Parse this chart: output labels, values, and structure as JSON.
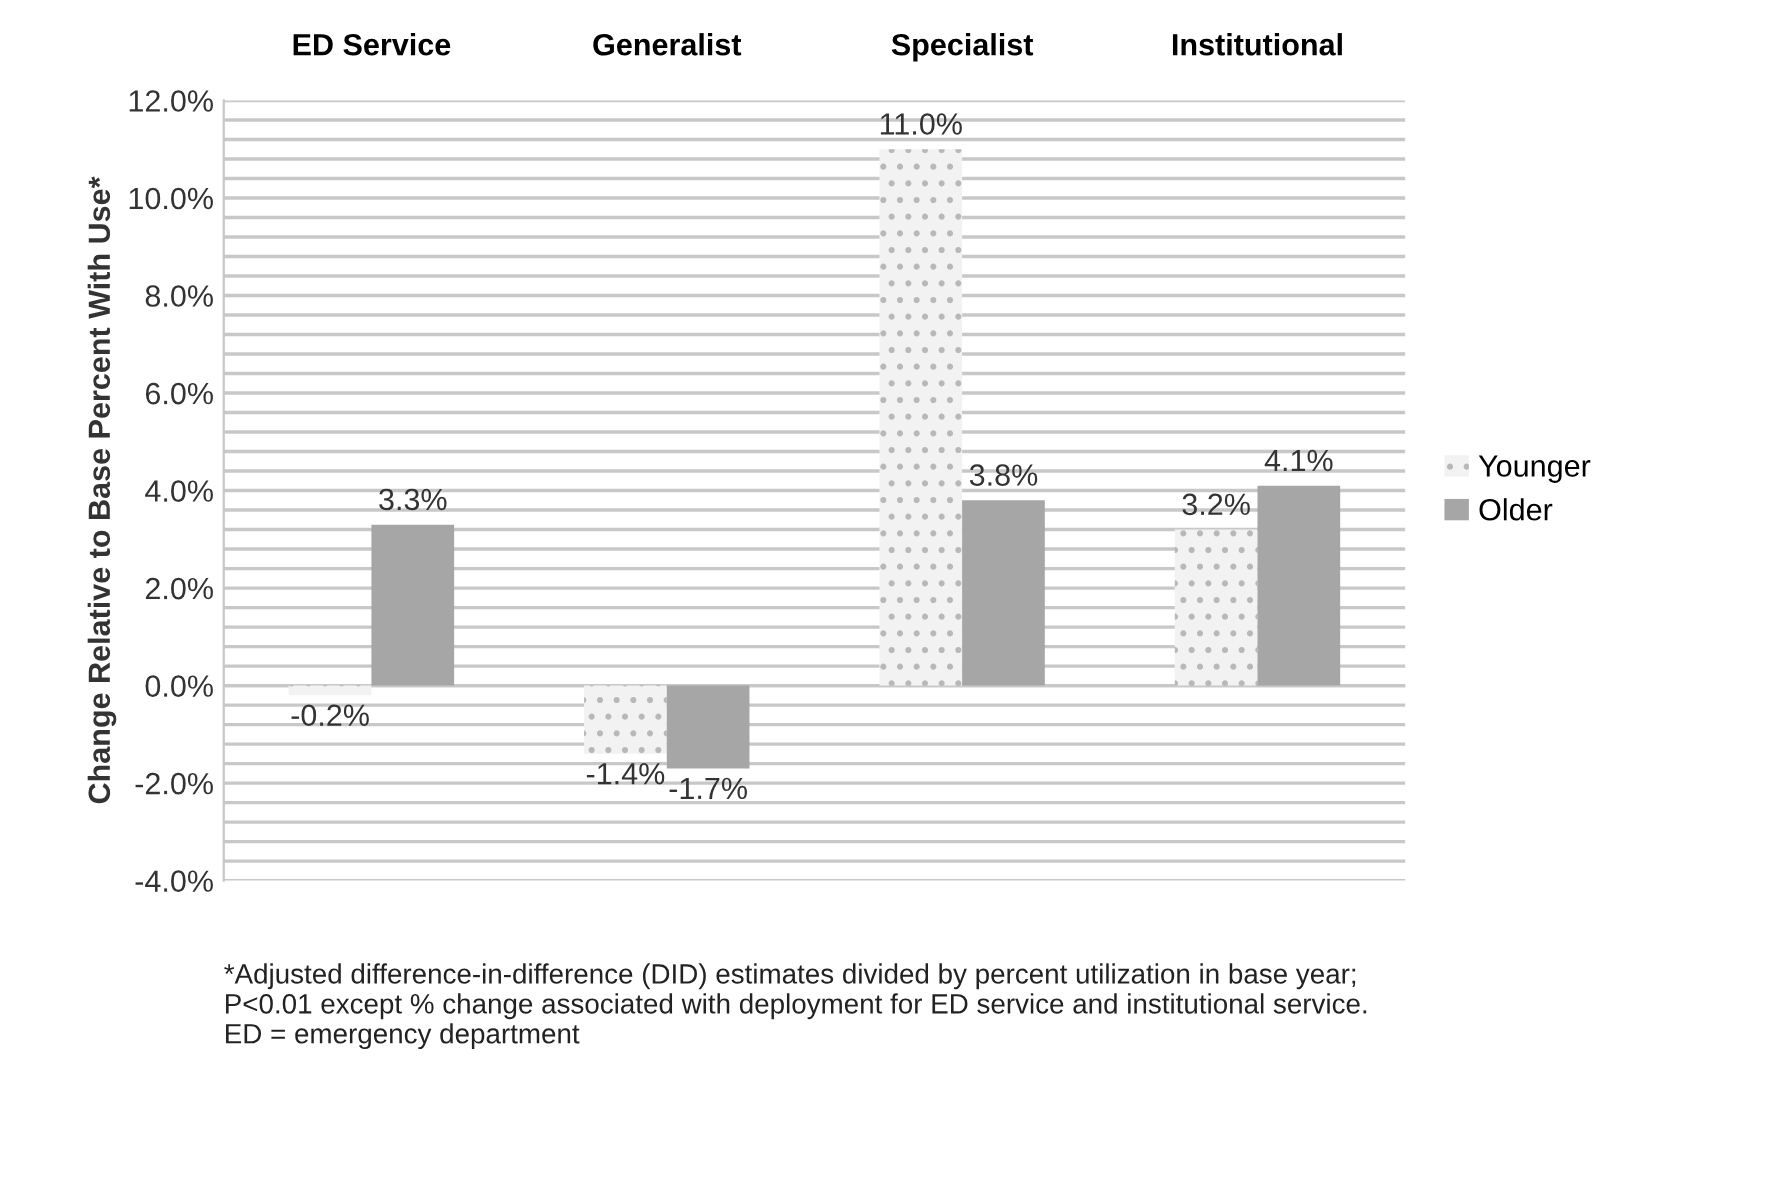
{
  "chart_data": {
    "type": "bar",
    "categories": [
      "ED Service",
      "Generalist",
      "Specialist",
      "Institutional"
    ],
    "ylabel": "Change Relative to Base Percent With Use*",
    "series": [
      {
        "name": "Younger",
        "color": "#f2f2f2",
        "values": [
          -0.2,
          -1.4,
          11.0,
          3.2
        ],
        "value_labels": [
          "-0.2%",
          "-1.4%",
          "11.0%",
          "3.2%"
        ]
      },
      {
        "name": "Older",
        "color": "#a6a6a6",
        "values": [
          3.3,
          -1.7,
          3.8,
          4.1
        ],
        "value_labels": [
          "3.3%",
          "-1.7%",
          "3.8%",
          "4.1%"
        ]
      }
    ],
    "ylim": [
      -4,
      12
    ],
    "yticks": [
      {
        "value": -4,
        "label": "-4.0%"
      },
      {
        "value": -3.6,
        "label": null
      },
      {
        "value": -3.2,
        "label": null
      },
      {
        "value": -2.8,
        "label": null
      },
      {
        "value": -2.4,
        "label": null
      },
      {
        "value": -2,
        "label": "-2.0%"
      },
      {
        "value": -1.6,
        "label": null
      },
      {
        "value": -1.2,
        "label": null
      },
      {
        "value": -0.8,
        "label": null
      },
      {
        "value": -0.4,
        "label": null
      },
      {
        "value": 0,
        "label": "0.0%"
      },
      {
        "value": 0.4,
        "label": null
      },
      {
        "value": 0.8,
        "label": null
      },
      {
        "value": 1.2,
        "label": null
      },
      {
        "value": 1.6,
        "label": null
      },
      {
        "value": 2,
        "label": "2.0%"
      },
      {
        "value": 2.4,
        "label": null
      },
      {
        "value": 2.8,
        "label": null
      },
      {
        "value": 3.2,
        "label": null
      },
      {
        "value": 3.6,
        "label": null
      },
      {
        "value": 4,
        "label": "4.0%"
      },
      {
        "value": 4.4,
        "label": null
      },
      {
        "value": 4.8,
        "label": null
      },
      {
        "value": 5.2,
        "label": null
      },
      {
        "value": 5.6,
        "label": null
      },
      {
        "value": 6,
        "label": "6.0%"
      },
      {
        "value": 6.4,
        "label": null
      },
      {
        "value": 6.8,
        "label": null
      },
      {
        "value": 7.2,
        "label": null
      },
      {
        "value": 7.6,
        "label": null
      },
      {
        "value": 8,
        "label": "8.0%"
      },
      {
        "value": 8.4,
        "label": null
      },
      {
        "value": 8.8,
        "label": null
      },
      {
        "value": 9.2,
        "label": null
      },
      {
        "value": 9.6,
        "label": null
      },
      {
        "value": 10,
        "label": "10.0%"
      },
      {
        "value": 10.4,
        "label": null
      },
      {
        "value": 10.8,
        "label": null
      },
      {
        "value": 11.2,
        "label": null
      },
      {
        "value": 11.6,
        "label": null
      },
      {
        "value": 12,
        "label": "12.0%"
      }
    ],
    "grid": "y",
    "legend": "right",
    "annotations": [
      "*Adjusted difference-in-difference (DID) estimates divided by percent utilization in base year;\nP<0.01 except % change associated with deployment for ED service and institutional service.\nED = emergency department"
    ]
  }
}
